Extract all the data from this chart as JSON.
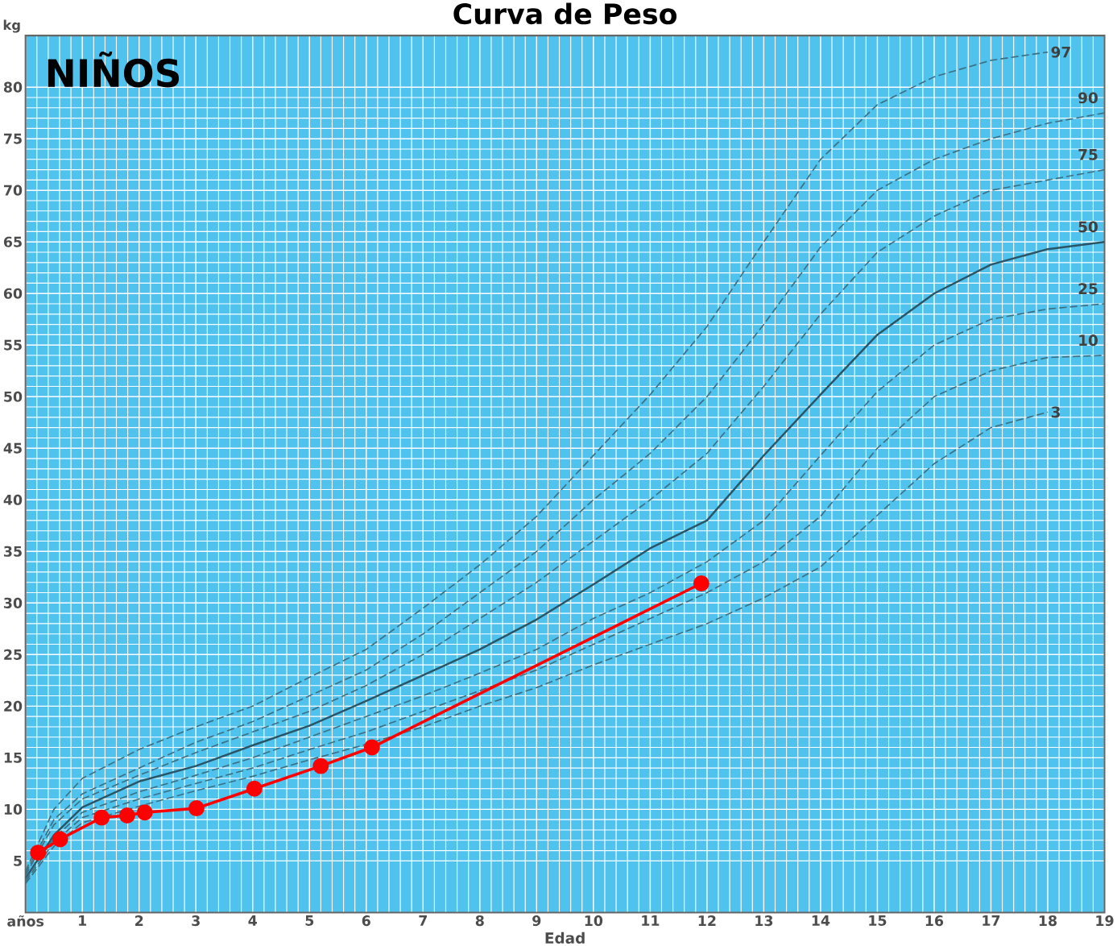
{
  "chart_data": {
    "type": "line",
    "title": "Curva de Peso",
    "xlabel": "Edad",
    "ylabel": "kg",
    "xlim": [
      0,
      19
    ],
    "ylim": [
      0,
      85
    ],
    "xticks": [
      {
        "value": 0,
        "label": "años"
      },
      1,
      2,
      3,
      4,
      5,
      6,
      7,
      8,
      9,
      10,
      11,
      12,
      13,
      14,
      15,
      16,
      17,
      18,
      19
    ],
    "yticks": [
      5,
      10,
      15,
      20,
      25,
      30,
      35,
      40,
      45,
      50,
      55,
      60,
      65,
      70,
      75,
      80
    ],
    "grid": true,
    "annotations": [
      "NIÑOS"
    ],
    "series": [
      {
        "name": "97",
        "color": "#3d6f80",
        "line_style": "dashed",
        "x": [
          0,
          0.5,
          1,
          2,
          3,
          4,
          5,
          6,
          7,
          8,
          9,
          10,
          11,
          12,
          13,
          14,
          15,
          16,
          17,
          18
        ],
        "values": [
          4,
          10,
          13,
          15.8,
          18,
          20,
          22.8,
          25.5,
          29.5,
          33.7,
          38.4,
          44.3,
          50.2,
          56.8,
          65,
          73,
          78.3,
          81,
          82.6,
          83.4
        ]
      },
      {
        "name": "90",
        "color": "#3d6f80",
        "line_style": "dashed",
        "x": [
          0,
          0.5,
          1,
          2,
          3,
          4,
          5,
          6,
          7,
          8,
          9,
          10,
          11,
          12,
          13,
          14,
          15,
          16,
          17,
          18,
          19
        ],
        "values": [
          3.8,
          9,
          11.5,
          14,
          16.5,
          18.5,
          21,
          23.5,
          27,
          31,
          35,
          40,
          44.5,
          50,
          57,
          64.5,
          70,
          73,
          75,
          76.5,
          77.5
        ]
      },
      {
        "name": "75",
        "color": "#3d6f80",
        "line_style": "dashed",
        "x": [
          0,
          0.5,
          1,
          2,
          3,
          4,
          5,
          6,
          7,
          8,
          9,
          10,
          11,
          12,
          13,
          14,
          15,
          16,
          17,
          18,
          19
        ],
        "values": [
          3.6,
          8.5,
          11,
          13.3,
          15.5,
          17.5,
          19.5,
          22,
          25,
          28.5,
          32,
          36,
          40,
          44.5,
          51,
          58,
          64,
          67.5,
          70,
          71,
          72
        ]
      },
      {
        "name": "50",
        "color": "#2a5566",
        "line_style": "solid",
        "x": [
          0,
          0.5,
          1,
          2,
          3,
          4,
          5,
          6,
          7,
          8,
          9,
          10,
          11,
          12,
          13,
          14,
          15,
          16,
          17,
          18,
          19
        ],
        "values": [
          3.3,
          7.5,
          10.2,
          12.7,
          14.2,
          16.2,
          18.1,
          20.5,
          23,
          25.5,
          28.4,
          31.8,
          35.3,
          38,
          44.3,
          50.2,
          56,
          60,
          62.8,
          64.3,
          65
        ]
      },
      {
        "name": "25",
        "color": "#3d6f80",
        "line_style": "dashed",
        "x": [
          0,
          0.5,
          1,
          2,
          3,
          4,
          5,
          6,
          7,
          8,
          9,
          10,
          11,
          12,
          13,
          14,
          15,
          16,
          17,
          18,
          19
        ],
        "values": [
          3.2,
          7.2,
          9.7,
          11.7,
          13.3,
          15,
          17,
          19,
          21,
          23.2,
          25.5,
          28.5,
          31,
          34,
          38,
          44.3,
          50.5,
          55,
          57.5,
          58.5,
          59
        ]
      },
      {
        "name": "10",
        "color": "#3d6f80",
        "line_style": "dashed",
        "x": [
          0,
          0.5,
          1,
          2,
          3,
          4,
          5,
          6,
          7,
          8,
          9,
          10,
          11,
          12,
          13,
          14,
          15,
          16,
          17,
          18,
          19
        ],
        "values": [
          3,
          6.8,
          9.2,
          11,
          12.5,
          14,
          15.8,
          17.5,
          19.5,
          21.5,
          23.5,
          26,
          28.5,
          31,
          34,
          38.4,
          45,
          50,
          52.5,
          53.8,
          54
        ]
      },
      {
        "name": "3",
        "color": "#3d6f80",
        "line_style": "dashed",
        "x": [
          0,
          0.5,
          1,
          2,
          3,
          4,
          5,
          6,
          7,
          8,
          9,
          10,
          11,
          12,
          13,
          14,
          15,
          16,
          17,
          18
        ],
        "values": [
          2.8,
          6.4,
          8.7,
          10.3,
          11.8,
          13.2,
          14.8,
          16.3,
          18,
          20,
          21.8,
          24,
          26,
          28,
          30.5,
          33.5,
          38.5,
          43.5,
          47,
          48.5
        ]
      },
      {
        "color": "#ff0000",
        "line_style": "solid",
        "marker": "circle",
        "x": [
          0.22,
          0.61,
          1.34,
          1.79,
          2.1,
          3.01,
          4.03,
          5.2,
          6.1,
          11.9
        ],
        "values": [
          5.8,
          7.1,
          9.2,
          9.4,
          9.7,
          10.1,
          12.0,
          14.2,
          16.0,
          31.9
        ]
      }
    ]
  }
}
